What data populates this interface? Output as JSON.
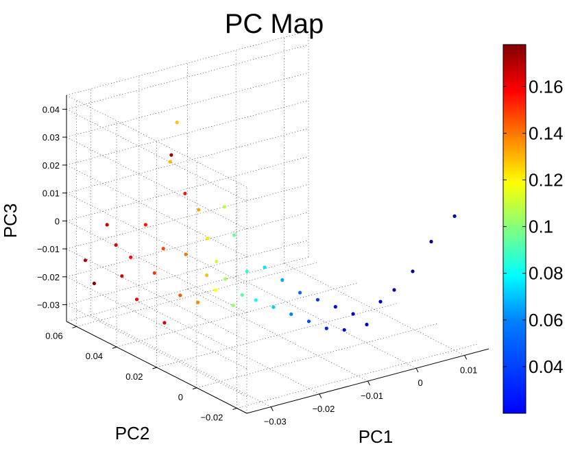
{
  "chart_data": {
    "type": "scatter",
    "title": "PC Map",
    "xlabel": "PC1",
    "ylabel": "PC2",
    "zlabel": "PC3",
    "colorbar": {
      "range": [
        0.02,
        0.178
      ],
      "colormap": "jet",
      "ticks": [
        {
          "value": 0.04,
          "label": "0.04"
        },
        {
          "value": 0.06,
          "label": "0.06"
        },
        {
          "value": 0.08,
          "label": "0.08"
        },
        {
          "value": 0.1,
          "label": "0.1"
        },
        {
          "value": 0.12,
          "label": "0.12"
        },
        {
          "value": 0.14,
          "label": "0.14"
        },
        {
          "value": 0.16,
          "label": "0.16"
        }
      ]
    },
    "pc1_axis": {
      "range": [
        -0.035,
        0.015
      ],
      "ticks": [
        {
          "value": -0.03,
          "label": "−0.03"
        },
        {
          "value": -0.02,
          "label": "−0.02"
        },
        {
          "value": -0.01,
          "label": "−0.01"
        },
        {
          "value": 0,
          "label": "0"
        },
        {
          "value": 0.01,
          "label": "0.01"
        }
      ]
    },
    "pc2_axis": {
      "range": [
        -0.025,
        0.065
      ],
      "ticks": [
        {
          "value": -0.02,
          "label": "−0.02"
        },
        {
          "value": 0,
          "label": "0"
        },
        {
          "value": 0.02,
          "label": "0.02"
        },
        {
          "value": 0.04,
          "label": "0.04"
        },
        {
          "value": 0.06,
          "label": "0.06"
        }
      ]
    },
    "pc3_axis": {
      "range": [
        -0.036,
        0.045
      ],
      "ticks": [
        {
          "value": -0.03,
          "label": "−0.03"
        },
        {
          "value": -0.02,
          "label": "−0.02"
        },
        {
          "value": -0.01,
          "label": "−0.01"
        },
        {
          "value": 0,
          "label": "0"
        },
        {
          "value": 0.01,
          "label": "0.01"
        },
        {
          "value": 0.02,
          "label": "0.02"
        },
        {
          "value": 0.03,
          "label": "0.03"
        },
        {
          "value": 0.04,
          "label": "0.04"
        }
      ]
    },
    "grid": true,
    "legend": "colorbar-right",
    "series": [
      {
        "name": "points",
        "points": [
          {
            "pc1": -0.034,
            "pc2": 0.058,
            "pc3": -0.012,
            "c": 0.172
          },
          {
            "pc1": -0.033,
            "pc2": 0.056,
            "pc3": -0.02,
            "c": 0.176
          },
          {
            "pc1": -0.032,
            "pc2": 0.052,
            "pc3": 0.002,
            "c": 0.168
          },
          {
            "pc1": -0.031,
            "pc2": 0.05,
            "pc3": -0.005,
            "c": 0.162
          },
          {
            "pc1": -0.031,
            "pc2": 0.047,
            "pc3": -0.015,
            "c": 0.165
          },
          {
            "pc1": -0.03,
            "pc2": 0.045,
            "pc3": -0.008,
            "c": 0.158
          },
          {
            "pc1": -0.03,
            "pc2": 0.042,
            "pc3": -0.022,
            "c": 0.16
          },
          {
            "pc1": -0.029,
            "pc2": 0.04,
            "pc3": 0.005,
            "c": 0.155
          },
          {
            "pc1": -0.028,
            "pc2": 0.038,
            "pc3": -0.012,
            "c": 0.15
          },
          {
            "pc1": -0.028,
            "pc2": 0.033,
            "pc3": -0.028,
            "c": 0.163
          },
          {
            "pc1": -0.027,
            "pc2": 0.036,
            "pc3": -0.003,
            "c": 0.148
          },
          {
            "pc1": -0.027,
            "pc2": 0.032,
            "pc3": 0.032,
            "c": 0.172
          },
          {
            "pc1": -0.026,
            "pc2": 0.035,
            "pc3": 0.028,
            "c": 0.13
          },
          {
            "pc1": -0.026,
            "pc2": 0.03,
            "pc3": -0.018,
            "c": 0.145
          },
          {
            "pc1": -0.025,
            "pc2": 0.034,
            "pc3": 0.042,
            "c": 0.128
          },
          {
            "pc1": -0.025,
            "pc2": 0.03,
            "pc3": 0.018,
            "c": 0.155
          },
          {
            "pc1": -0.024,
            "pc2": 0.032,
            "pc3": -0.005,
            "c": 0.14
          },
          {
            "pc1": -0.024,
            "pc2": 0.026,
            "pc3": -0.02,
            "c": 0.137
          },
          {
            "pc1": -0.023,
            "pc2": 0.028,
            "pc3": 0.012,
            "c": 0.133
          },
          {
            "pc1": -0.023,
            "pc2": 0.024,
            "pc3": -0.01,
            "c": 0.128
          },
          {
            "pc1": -0.022,
            "pc2": 0.026,
            "pc3": 0.002,
            "c": 0.122
          },
          {
            "pc1": -0.022,
            "pc2": 0.022,
            "pc3": -0.015,
            "c": 0.118
          },
          {
            "pc1": -0.021,
            "pc2": 0.024,
            "pc3": -0.006,
            "c": 0.112
          },
          {
            "pc1": -0.021,
            "pc2": 0.02,
            "pc3": 0.015,
            "c": 0.108
          },
          {
            "pc1": -0.02,
            "pc2": 0.022,
            "pc3": -0.012,
            "c": 0.105
          },
          {
            "pc1": -0.02,
            "pc2": 0.018,
            "pc3": -0.02,
            "c": 0.102
          },
          {
            "pc1": -0.019,
            "pc2": 0.02,
            "pc3": 0.004,
            "c": 0.096
          },
          {
            "pc1": -0.019,
            "pc2": 0.016,
            "pc3": -0.016,
            "c": 0.093
          },
          {
            "pc1": -0.018,
            "pc2": 0.016,
            "pc3": -0.008,
            "c": 0.088
          },
          {
            "pc1": -0.017,
            "pc2": 0.014,
            "pc3": -0.018,
            "c": 0.082
          },
          {
            "pc1": -0.016,
            "pc2": 0.012,
            "pc3": -0.006,
            "c": 0.076
          },
          {
            "pc1": -0.015,
            "pc2": 0.01,
            "pc3": -0.02,
            "c": 0.072
          },
          {
            "pc1": -0.014,
            "pc2": 0.008,
            "pc3": -0.01,
            "c": 0.066
          },
          {
            "pc1": -0.013,
            "pc2": 0.006,
            "pc3": -0.022,
            "c": 0.06
          },
          {
            "pc1": -0.012,
            "pc2": 0.004,
            "pc3": -0.014,
            "c": 0.056
          },
          {
            "pc1": -0.011,
            "pc2": 0.002,
            "pc3": -0.024,
            "c": 0.052
          },
          {
            "pc1": -0.01,
            "pc2": 0.0,
            "pc3": -0.016,
            "c": 0.048
          },
          {
            "pc1": -0.009,
            "pc2": -0.002,
            "pc3": -0.026,
            "c": 0.044
          },
          {
            "pc1": -0.008,
            "pc2": -0.004,
            "pc3": -0.018,
            "c": 0.04
          },
          {
            "pc1": -0.007,
            "pc2": -0.006,
            "pc3": -0.026,
            "c": 0.036
          },
          {
            "pc1": -0.006,
            "pc2": -0.008,
            "pc3": -0.02,
            "c": 0.034
          },
          {
            "pc1": -0.004,
            "pc2": -0.01,
            "pc3": -0.024,
            "c": 0.03
          },
          {
            "pc1": -0.002,
            "pc2": -0.012,
            "pc3": -0.016,
            "c": 0.028
          },
          {
            "pc1": 0.0,
            "pc2": -0.014,
            "pc3": -0.012,
            "c": 0.026
          },
          {
            "pc1": 0.003,
            "pc2": -0.016,
            "pc3": -0.006,
            "c": 0.025
          },
          {
            "pc1": 0.006,
            "pc2": -0.018,
            "pc3": 0.004,
            "c": 0.024
          },
          {
            "pc1": 0.01,
            "pc2": -0.02,
            "pc3": 0.012,
            "c": 0.024
          }
        ]
      }
    ]
  }
}
